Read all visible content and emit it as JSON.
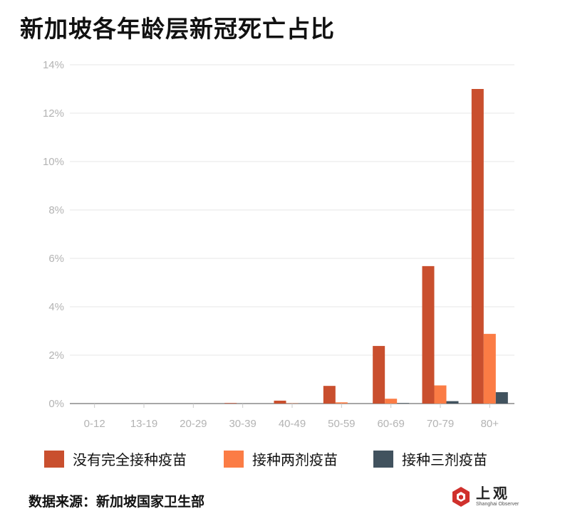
{
  "title": "新加坡各年龄层新冠死亡占比",
  "source": "数据来源：新加坡国家卫生部",
  "logo": {
    "text_cn": "上观",
    "text_en": "Shanghai Observer",
    "icon": "shanghai-observer-logo-icon"
  },
  "colors": {
    "unvaccinated": "#c94f2e",
    "two_doses": "#fb7c45",
    "three_doses": "#41525e",
    "grid": "#ececec",
    "tick_text": "#b3b3b3"
  },
  "chart_data": {
    "type": "bar",
    "title": "新加坡各年龄层新冠死亡占比",
    "xlabel": "",
    "ylabel": "",
    "ylim": [
      0,
      14
    ],
    "yticks": [
      0,
      2,
      4,
      6,
      8,
      10,
      12,
      14
    ],
    "ytick_labels": [
      "0%",
      "2%",
      "4%",
      "6%",
      "8%",
      "10%",
      "12%",
      "14%"
    ],
    "categories": [
      "0-12",
      "13-19",
      "20-29",
      "30-39",
      "40-49",
      "50-59",
      "60-69",
      "70-79",
      "80+"
    ],
    "series": [
      {
        "name": "没有完全接种疫苗",
        "color": "#c94f2e",
        "values": [
          0,
          0,
          0,
          0.02,
          0.12,
          0.73,
          2.38,
          5.68,
          13.0
        ]
      },
      {
        "name": "接种两剂疫苗",
        "color": "#fb7c45",
        "values": [
          0,
          0,
          0,
          0,
          0.01,
          0.05,
          0.2,
          0.75,
          2.88
        ]
      },
      {
        "name": "接种三剂疫苗",
        "color": "#41525e",
        "values": [
          0,
          0,
          0,
          0,
          0,
          0,
          0.02,
          0.1,
          0.47
        ]
      }
    ],
    "grid": true,
    "legend_position": "bottom"
  }
}
